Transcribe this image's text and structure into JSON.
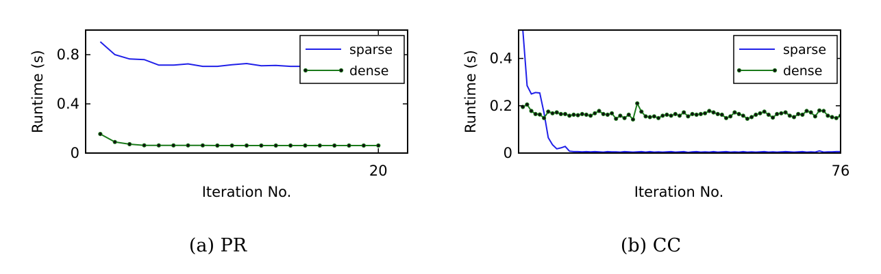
{
  "chart_data": [
    {
      "type": "line",
      "caption": "(a) PR",
      "xlabel": "Iteration No.",
      "ylabel": "Runtime (s)",
      "ylim": [
        0,
        1.0
      ],
      "xlim": [
        0,
        22
      ],
      "yticks": [
        0,
        0.4,
        0.8
      ],
      "ytick_labels": [
        "0",
        "0.4",
        "0.8"
      ],
      "xticks": [
        20
      ],
      "xtick_labels": [
        "20"
      ],
      "legend": "top-right",
      "series": [
        {
          "name": "sparse",
          "color": "#1f1fe8",
          "marker": false,
          "x": [
            1,
            2,
            3,
            4,
            5,
            6,
            7,
            8,
            9,
            10,
            11,
            12,
            13,
            14,
            15,
            16,
            17,
            18,
            19,
            20
          ],
          "values": [
            0.905,
            0.8,
            0.765,
            0.76,
            0.715,
            0.715,
            0.725,
            0.705,
            0.705,
            0.718,
            0.728,
            0.71,
            0.712,
            0.705,
            0.705,
            0.71,
            0.705,
            0.705,
            0.705,
            0.705
          ]
        },
        {
          "name": "dense",
          "color": "#1a7a1a",
          "marker": true,
          "x": [
            1,
            2,
            3,
            4,
            5,
            6,
            7,
            8,
            9,
            10,
            11,
            12,
            13,
            14,
            15,
            16,
            17,
            18,
            19,
            20
          ],
          "values": [
            0.155,
            0.09,
            0.072,
            0.063,
            0.062,
            0.062,
            0.062,
            0.062,
            0.061,
            0.061,
            0.061,
            0.061,
            0.061,
            0.061,
            0.061,
            0.061,
            0.061,
            0.061,
            0.061,
            0.061
          ]
        }
      ]
    },
    {
      "type": "line",
      "caption": "(b) CC",
      "xlabel": "Iteration No.",
      "ylabel": "Runtime (s)",
      "ylim": [
        0,
        0.52
      ],
      "xlim": [
        0,
        76
      ],
      "yticks": [
        0,
        0.2,
        0.4
      ],
      "ytick_labels": [
        "0",
        "0.2",
        "0.4"
      ],
      "xticks": [
        76
      ],
      "xtick_labels": [
        "76"
      ],
      "legend": "top-right",
      "series": [
        {
          "name": "sparse",
          "color": "#1f1fe8",
          "marker": false,
          "x": [
            1,
            2,
            3,
            4,
            5,
            6,
            7,
            8,
            9,
            10,
            11,
            12,
            13,
            14,
            15,
            16,
            17,
            18,
            19,
            20,
            21,
            22,
            23,
            24,
            25,
            26,
            27,
            28,
            29,
            30,
            31,
            32,
            33,
            34,
            35,
            36,
            37,
            38,
            39,
            40,
            41,
            42,
            43,
            44,
            45,
            46,
            47,
            48,
            49,
            50,
            51,
            52,
            53,
            54,
            55,
            56,
            57,
            58,
            59,
            60,
            61,
            62,
            63,
            64,
            65,
            66,
            67,
            68,
            69,
            70,
            71,
            72,
            73,
            74,
            75,
            76
          ],
          "values": [
            0.52,
            0.285,
            0.25,
            0.256,
            0.254,
            0.17,
            0.065,
            0.035,
            0.018,
            0.022,
            0.028,
            0.008,
            0.006,
            0.006,
            0.005,
            0.006,
            0.005,
            0.006,
            0.005,
            0.004,
            0.006,
            0.005,
            0.005,
            0.004,
            0.006,
            0.005,
            0.004,
            0.005,
            0.006,
            0.004,
            0.006,
            0.004,
            0.005,
            0.004,
            0.005,
            0.006,
            0.004,
            0.005,
            0.006,
            0.003,
            0.005,
            0.006,
            0.004,
            0.005,
            0.004,
            0.006,
            0.004,
            0.005,
            0.006,
            0.004,
            0.005,
            0.004,
            0.006,
            0.004,
            0.005,
            0.004,
            0.005,
            0.006,
            0.004,
            0.005,
            0.004,
            0.005,
            0.006,
            0.005,
            0.004,
            0.005,
            0.006,
            0.004,
            0.005,
            0.004,
            0.009,
            0.004,
            0.005,
            0.005,
            0.006,
            0.006
          ]
        },
        {
          "name": "dense",
          "color": "#1a7a1a",
          "marker": true,
          "x": [
            1,
            2,
            3,
            4,
            5,
            6,
            7,
            8,
            9,
            10,
            11,
            12,
            13,
            14,
            15,
            16,
            17,
            18,
            19,
            20,
            21,
            22,
            23,
            24,
            25,
            26,
            27,
            28,
            29,
            30,
            31,
            32,
            33,
            34,
            35,
            36,
            37,
            38,
            39,
            40,
            41,
            42,
            43,
            44,
            45,
            46,
            47,
            48,
            49,
            50,
            51,
            52,
            53,
            54,
            55,
            56,
            57,
            58,
            59,
            60,
            61,
            62,
            63,
            64,
            65,
            66,
            67,
            68,
            69,
            70,
            71,
            72,
            73,
            74,
            75,
            76
          ],
          "values": [
            0.195,
            0.205,
            0.178,
            0.165,
            0.163,
            0.148,
            0.175,
            0.168,
            0.172,
            0.165,
            0.165,
            0.158,
            0.162,
            0.16,
            0.165,
            0.162,
            0.158,
            0.168,
            0.178,
            0.165,
            0.162,
            0.168,
            0.145,
            0.158,
            0.148,
            0.162,
            0.142,
            0.21,
            0.175,
            0.155,
            0.152,
            0.155,
            0.148,
            0.158,
            0.162,
            0.158,
            0.165,
            0.158,
            0.172,
            0.155,
            0.165,
            0.162,
            0.165,
            0.168,
            0.178,
            0.172,
            0.165,
            0.162,
            0.148,
            0.155,
            0.172,
            0.165,
            0.158,
            0.145,
            0.152,
            0.162,
            0.168,
            0.175,
            0.162,
            0.15,
            0.165,
            0.168,
            0.172,
            0.158,
            0.152,
            0.165,
            0.162,
            0.178,
            0.172,
            0.155,
            0.18,
            0.178,
            0.158,
            0.152,
            0.148,
            0.158
          ]
        }
      ]
    }
  ]
}
